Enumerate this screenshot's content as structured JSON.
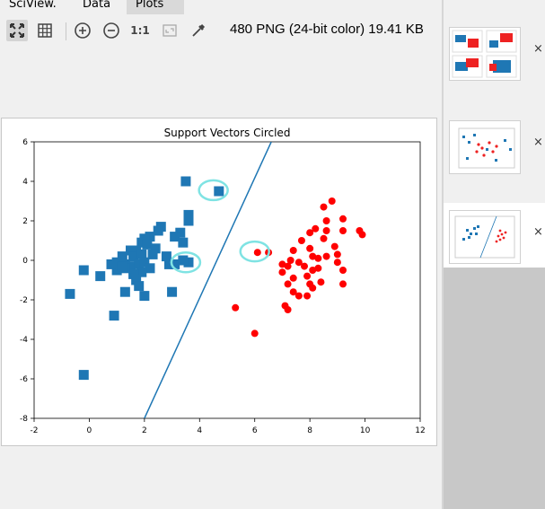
{
  "tabs": [
    {
      "label": "SciView."
    },
    {
      "label": "Data"
    },
    {
      "label": "Plots"
    }
  ],
  "toolbar": {
    "actual_size_label": "1:1",
    "image_info": "480 PNG (24-bit color) 19.41 KB",
    "icons": [
      "fit-view-icon",
      "grid-icon",
      "zoom-in-icon",
      "zoom-out-icon",
      "actual-size-icon",
      "fit-window-icon",
      "eyedropper-icon"
    ]
  },
  "thumbnails": [
    {
      "close": "×"
    },
    {
      "close": "×"
    },
    {
      "close": "×",
      "selected": true
    }
  ],
  "chart_data": {
    "type": "scatter",
    "title": "Support Vectors Circled",
    "xlim": [
      -2,
      12
    ],
    "ylim": [
      -8,
      6
    ],
    "x_ticks": [
      "-2",
      "0",
      "2",
      "4",
      "6",
      "8",
      "10",
      "12"
    ],
    "y_ticks": [
      "6",
      "4",
      "2",
      "0",
      "-2",
      "-4",
      "-6",
      "-8"
    ],
    "grid": false,
    "colors": {
      "class_a": "#1f77b4",
      "class_b": "#ff0000",
      "boundary": "#1f77b4",
      "support_ring": "#7fe3e3"
    },
    "series": [
      {
        "marker": "square",
        "color": "#1f77b4",
        "points": [
          [
            3.5,
            4.0
          ],
          [
            4.7,
            3.5
          ],
          [
            3.6,
            2.3
          ],
          [
            3.6,
            2.0
          ],
          [
            2.6,
            1.7
          ],
          [
            2.5,
            1.5
          ],
          [
            3.3,
            1.4
          ],
          [
            3.1,
            1.2
          ],
          [
            2.2,
            1.2
          ],
          [
            2.0,
            1.1
          ],
          [
            1.9,
            0.9
          ],
          [
            2.1,
            0.8
          ],
          [
            3.4,
            0.9
          ],
          [
            2.4,
            0.6
          ],
          [
            2.8,
            0.2
          ],
          [
            1.7,
            0.5
          ],
          [
            1.5,
            0.5
          ],
          [
            1.2,
            0.2
          ],
          [
            1.6,
            0.2
          ],
          [
            1.9,
            0.3
          ],
          [
            2.3,
            0.3
          ],
          [
            1.0,
            -0.1
          ],
          [
            1.3,
            -0.2
          ],
          [
            1.5,
            -0.3
          ],
          [
            1.8,
            -0.2
          ],
          [
            2.0,
            -0.1
          ],
          [
            2.2,
            -0.4
          ],
          [
            1.9,
            -0.6
          ],
          [
            1.6,
            -0.7
          ],
          [
            1.3,
            -0.4
          ],
          [
            1.0,
            -0.5
          ],
          [
            0.8,
            -0.2
          ],
          [
            3.1,
            -0.2
          ],
          [
            3.6,
            -0.1
          ],
          [
            3.4,
            0.0
          ],
          [
            2.9,
            -0.2
          ],
          [
            1.7,
            -1.0
          ],
          [
            1.8,
            -1.3
          ],
          [
            1.3,
            -1.6
          ],
          [
            2.0,
            -1.8
          ],
          [
            3.0,
            -1.6
          ],
          [
            1.2,
            -0.3
          ],
          [
            0.4,
            -0.8
          ],
          [
            -0.2,
            -0.5
          ],
          [
            -0.7,
            -1.7
          ],
          [
            0.9,
            -2.8
          ],
          [
            -0.2,
            -5.8
          ]
        ]
      },
      {
        "marker": "circle",
        "color": "#ff0000",
        "points": [
          [
            8.8,
            3.0
          ],
          [
            8.5,
            2.7
          ],
          [
            9.2,
            2.1
          ],
          [
            8.6,
            2.0
          ],
          [
            8.0,
            1.4
          ],
          [
            8.2,
            1.6
          ],
          [
            8.6,
            1.5
          ],
          [
            9.2,
            1.5
          ],
          [
            9.8,
            1.5
          ],
          [
            9.9,
            1.3
          ],
          [
            8.5,
            1.1
          ],
          [
            8.9,
            0.7
          ],
          [
            7.7,
            1.0
          ],
          [
            7.4,
            0.5
          ],
          [
            8.0,
            0.6
          ],
          [
            8.1,
            0.2
          ],
          [
            8.3,
            0.1
          ],
          [
            8.6,
            0.2
          ],
          [
            9.0,
            0.3
          ],
          [
            7.6,
            -0.1
          ],
          [
            7.2,
            -0.3
          ],
          [
            7.8,
            -0.3
          ],
          [
            8.1,
            -0.5
          ],
          [
            8.3,
            -0.4
          ],
          [
            7.9,
            -0.8
          ],
          [
            7.4,
            -0.9
          ],
          [
            7.0,
            -0.6
          ],
          [
            8.0,
            -1.2
          ],
          [
            8.4,
            -1.1
          ],
          [
            9.2,
            -0.5
          ],
          [
            9.0,
            -0.1
          ],
          [
            9.2,
            -1.2
          ],
          [
            7.2,
            -1.2
          ],
          [
            7.4,
            -1.6
          ],
          [
            7.6,
            -1.8
          ],
          [
            8.1,
            -1.4
          ],
          [
            7.9,
            -1.8
          ],
          [
            7.1,
            -2.3
          ],
          [
            7.2,
            -2.5
          ],
          [
            6.1,
            0.4
          ],
          [
            6.5,
            0.4
          ],
          [
            5.3,
            -2.4
          ],
          [
            6.0,
            -3.7
          ],
          [
            7.0,
            -0.2
          ],
          [
            7.3,
            0.0
          ]
        ]
      }
    ],
    "support_vectors": [
      [
        4.5,
        3.55
      ],
      [
        3.5,
        -0.1
      ],
      [
        6.0,
        0.45
      ]
    ],
    "boundary_line": [
      [
        2.0,
        -8.0
      ],
      [
        6.6,
        6.0
      ]
    ]
  }
}
